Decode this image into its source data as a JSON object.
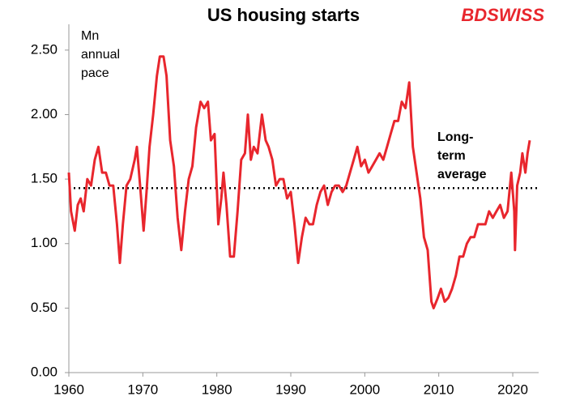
{
  "chart_data": {
    "type": "line",
    "title": "US housing starts",
    "logo": "BDSWISS",
    "y_label_lines": [
      "Mn",
      "annual",
      "pace"
    ],
    "average_label_lines": [
      "Long-",
      "term",
      "average"
    ],
    "average": 1.43,
    "color": "#e8262d",
    "x": [
      1960.0,
      1960.3,
      1960.8,
      1961.2,
      1961.6,
      1962.0,
      1962.5,
      1963.0,
      1963.5,
      1964.0,
      1964.5,
      1965.0,
      1965.5,
      1966.0,
      1966.5,
      1966.9,
      1967.3,
      1967.8,
      1968.3,
      1968.9,
      1969.2,
      1969.7,
      1970.1,
      1970.5,
      1970.9,
      1971.4,
      1971.9,
      1972.3,
      1972.8,
      1973.2,
      1973.7,
      1974.2,
      1974.7,
      1975.2,
      1975.7,
      1976.2,
      1976.7,
      1977.2,
      1977.8,
      1978.3,
      1978.8,
      1979.2,
      1979.7,
      1980.2,
      1980.6,
      1980.9,
      1981.3,
      1981.8,
      1982.3,
      1982.8,
      1983.3,
      1983.8,
      1984.2,
      1984.6,
      1985.0,
      1985.5,
      1986.1,
      1986.6,
      1987.0,
      1987.5,
      1988.0,
      1988.5,
      1989.0,
      1989.5,
      1990.0,
      1990.5,
      1991.0,
      1991.5,
      1992.0,
      1992.5,
      1993.0,
      1993.5,
      1994.0,
      1994.5,
      1995.0,
      1995.5,
      1996.0,
      1996.5,
      1997.0,
      1997.5,
      1998.0,
      1998.5,
      1999.0,
      1999.5,
      2000.0,
      2000.5,
      2001.0,
      2001.5,
      2002.0,
      2002.5,
      2003.0,
      2003.5,
      2004.0,
      2004.5,
      2005.0,
      2005.5,
      2006.0,
      2006.5,
      2007.0,
      2007.5,
      2008.0,
      2008.5,
      2009.0,
      2009.3,
      2009.8,
      2010.3,
      2010.8,
      2011.3,
      2011.8,
      2012.3,
      2012.8,
      2013.3,
      2013.8,
      2014.3,
      2014.8,
      2015.3,
      2015.8,
      2016.3,
      2016.8,
      2017.3,
      2017.8,
      2018.3,
      2018.8,
      2019.3,
      2019.8,
      2020.2,
      2020.3,
      2020.6,
      2021.0,
      2021.3,
      2021.7,
      2022.0,
      2022.3
    ],
    "values": [
      1.55,
      1.25,
      1.1,
      1.3,
      1.35,
      1.25,
      1.5,
      1.45,
      1.65,
      1.75,
      1.55,
      1.55,
      1.45,
      1.45,
      1.15,
      0.85,
      1.15,
      1.45,
      1.5,
      1.65,
      1.75,
      1.4,
      1.1,
      1.4,
      1.75,
      2.0,
      2.3,
      2.45,
      2.45,
      2.3,
      1.8,
      1.6,
      1.2,
      0.95,
      1.25,
      1.5,
      1.6,
      1.9,
      2.1,
      2.05,
      2.1,
      1.8,
      1.85,
      1.15,
      1.35,
      1.55,
      1.3,
      0.9,
      0.9,
      1.25,
      1.65,
      1.7,
      2.0,
      1.65,
      1.75,
      1.7,
      2.0,
      1.8,
      1.75,
      1.65,
      1.45,
      1.5,
      1.5,
      1.35,
      1.4,
      1.15,
      0.85,
      1.05,
      1.2,
      1.15,
      1.15,
      1.3,
      1.4,
      1.45,
      1.3,
      1.4,
      1.45,
      1.45,
      1.4,
      1.45,
      1.55,
      1.65,
      1.75,
      1.6,
      1.65,
      1.55,
      1.6,
      1.65,
      1.7,
      1.65,
      1.75,
      1.85,
      1.95,
      1.95,
      2.1,
      2.05,
      2.25,
      1.75,
      1.55,
      1.35,
      1.05,
      0.95,
      0.55,
      0.5,
      0.57,
      0.65,
      0.55,
      0.58,
      0.65,
      0.75,
      0.9,
      0.9,
      1.0,
      1.05,
      1.05,
      1.15,
      1.15,
      1.15,
      1.25,
      1.2,
      1.25,
      1.3,
      1.2,
      1.25,
      1.55,
      1.25,
      0.95,
      1.45,
      1.55,
      1.7,
      1.55,
      1.7,
      1.8
    ],
    "xlim": [
      1960,
      2023.5
    ],
    "xticks": [
      1960,
      1970,
      1980,
      1990,
      2000,
      2010,
      2020
    ],
    "ylim": [
      0,
      2.7
    ],
    "yticks": [
      {
        "value": 0,
        "label": "0.00"
      },
      {
        "value": 0.5,
        "label": "0.50"
      },
      {
        "value": 1,
        "label": "1.00"
      },
      {
        "value": 1.5,
        "label": "1.50"
      },
      {
        "value": 2,
        "label": "2.00"
      },
      {
        "value": 2.5,
        "label": "2.50"
      }
    ]
  }
}
